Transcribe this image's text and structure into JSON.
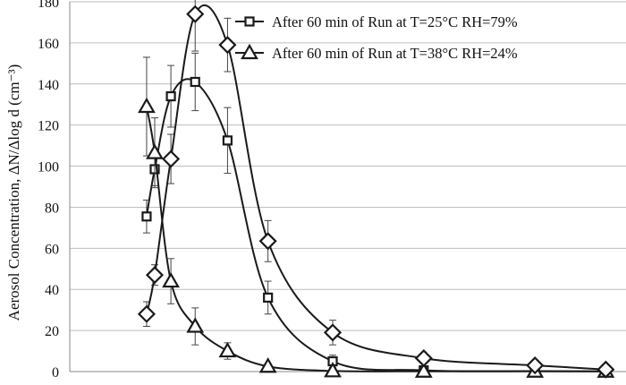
{
  "chart_data": {
    "type": "line",
    "title": "",
    "xlabel": "",
    "ylabel": "Aerosol Concentration, ΔN/Δlog d (cm⁻³)",
    "ylim": [
      0,
      180
    ],
    "yticks": [
      0,
      20,
      40,
      60,
      80,
      100,
      120,
      140,
      160,
      180
    ],
    "grid": "horizontal",
    "legend_position": "top-right",
    "series": [
      {
        "name": "After 60 min of Run at T=25°C RH=79%",
        "marker": "square",
        "color": "#1a1a1a",
        "x": [
          0.38,
          0.42,
          0.5,
          0.62,
          0.78,
          0.98,
          1.3,
          1.75,
          2.3,
          2.65
        ],
        "y": [
          75.5,
          98.5,
          134,
          141,
          112.5,
          36,
          5,
          0.6,
          0.2,
          0.1
        ],
        "err": [
          8,
          8,
          15,
          14,
          16,
          8,
          3,
          0,
          0,
          0
        ]
      },
      {
        "name": "After 60 min of Run at T=38°C RH=24%",
        "marker": "triangle",
        "color": "#1a1a1a",
        "x": [
          0.38,
          0.42,
          0.5,
          0.62,
          0.78,
          0.98,
          1.3,
          1.75,
          2.3,
          2.65
        ],
        "y": [
          129,
          106.5,
          44,
          22,
          10,
          2.5,
          0.3,
          0.1,
          0.1,
          0.1
        ],
        "err": [
          24,
          17,
          11,
          9,
          4,
          0,
          0,
          0,
          0,
          0
        ]
      },
      {
        "name": "",
        "marker": "diamond",
        "color": "#1a1a1a",
        "x": [
          0.38,
          0.42,
          0.5,
          0.62,
          0.78,
          0.98,
          1.3,
          1.75,
          2.3,
          2.65
        ],
        "y": [
          28,
          47,
          103.5,
          174,
          159,
          63.5,
          19,
          6.5,
          3,
          1
        ],
        "err": [
          6,
          5,
          12,
          18,
          13,
          10,
          6,
          0,
          0,
          0
        ]
      }
    ]
  }
}
